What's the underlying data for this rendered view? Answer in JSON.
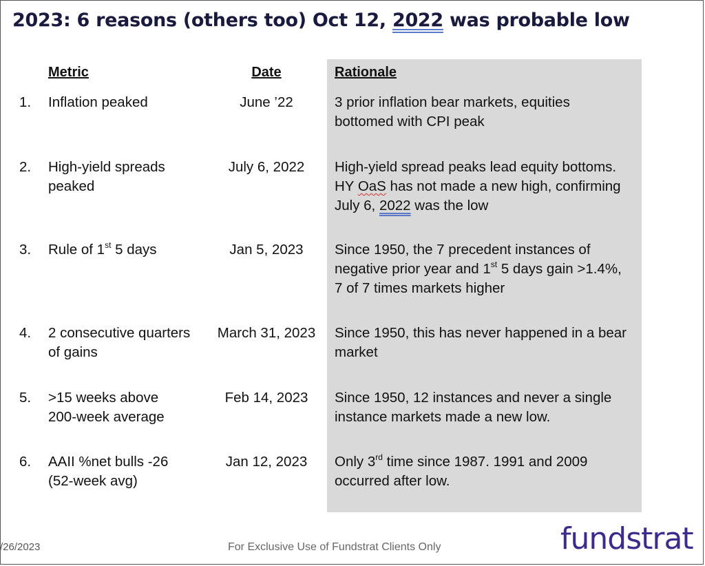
{
  "title": {
    "prefix": "2023: 6 reasons (others too) Oct 12, ",
    "year": "2022",
    "suffix": " was probable low"
  },
  "headers": {
    "metric": "Metric",
    "date": "Date",
    "rationale": "Rationale"
  },
  "rows": [
    {
      "num": "1.",
      "metric": [
        "Inflation peaked"
      ],
      "date": "June ’22",
      "rationale": [
        "3 prior inflation bear markets, equities",
        "bottomed with CPI peak"
      ]
    },
    {
      "num": "2.",
      "metric": [
        "High-yield spreads",
        "peaked"
      ],
      "date": "July 6, 2022",
      "rationale_l1": "High-yield spread peaks lead equity bottoms.",
      "rationale_l2_a": "HY ",
      "rationale_l2_b": "OaS",
      "rationale_l2_c": " has not made a new high, confirming",
      "rationale_l3_a": "July 6, ",
      "rationale_l3_b": "2022",
      "rationale_l3_c": " was the low"
    },
    {
      "num": "3.",
      "metric_a": "Rule of 1",
      "metric_sup": "st",
      "metric_b": " 5 days",
      "date": "Jan 5, 2023",
      "rationale_l1": "Since 1950, the 7 precedent instances of",
      "rationale_l2_a": "negative prior year and 1",
      "rationale_l2_sup": "st",
      "rationale_l2_b": " 5 days gain >1.4%,",
      "rationale_l3": "7 of 7 times markets higher"
    },
    {
      "num": "4.",
      "metric": [
        "2 consecutive quarters",
        "of gains"
      ],
      "date": "March 31, 2023",
      "rationale": [
        "Since 1950, this has never happened in a bear",
        "market"
      ]
    },
    {
      "num": "5.",
      "metric": [
        ">15 weeks above",
        "200-week average"
      ],
      "date": "Feb 14, 2023",
      "rationale": [
        "Since 1950, 12 instances and never a single",
        "instance markets made a new low."
      ]
    },
    {
      "num": "6.",
      "metric": [
        "AAII %net bulls -26",
        "(52-week avg)"
      ],
      "date": "Jan 12, 2023",
      "rationale_l1_a": "Only 3",
      "rationale_l1_sup": "rd",
      "rationale_l1_b": " time since 1987.  1991 and 2009",
      "rationale_l2": "occurred after low."
    }
  ],
  "footer": {
    "date": "/26/2023",
    "text": "For Exclusive Use of Fundstrat Clients Only",
    "logo": "fundstrat"
  },
  "colors": {
    "title": "#1a1a3e",
    "panel": "#d9d9d9",
    "logo": "#3d2a8a"
  }
}
